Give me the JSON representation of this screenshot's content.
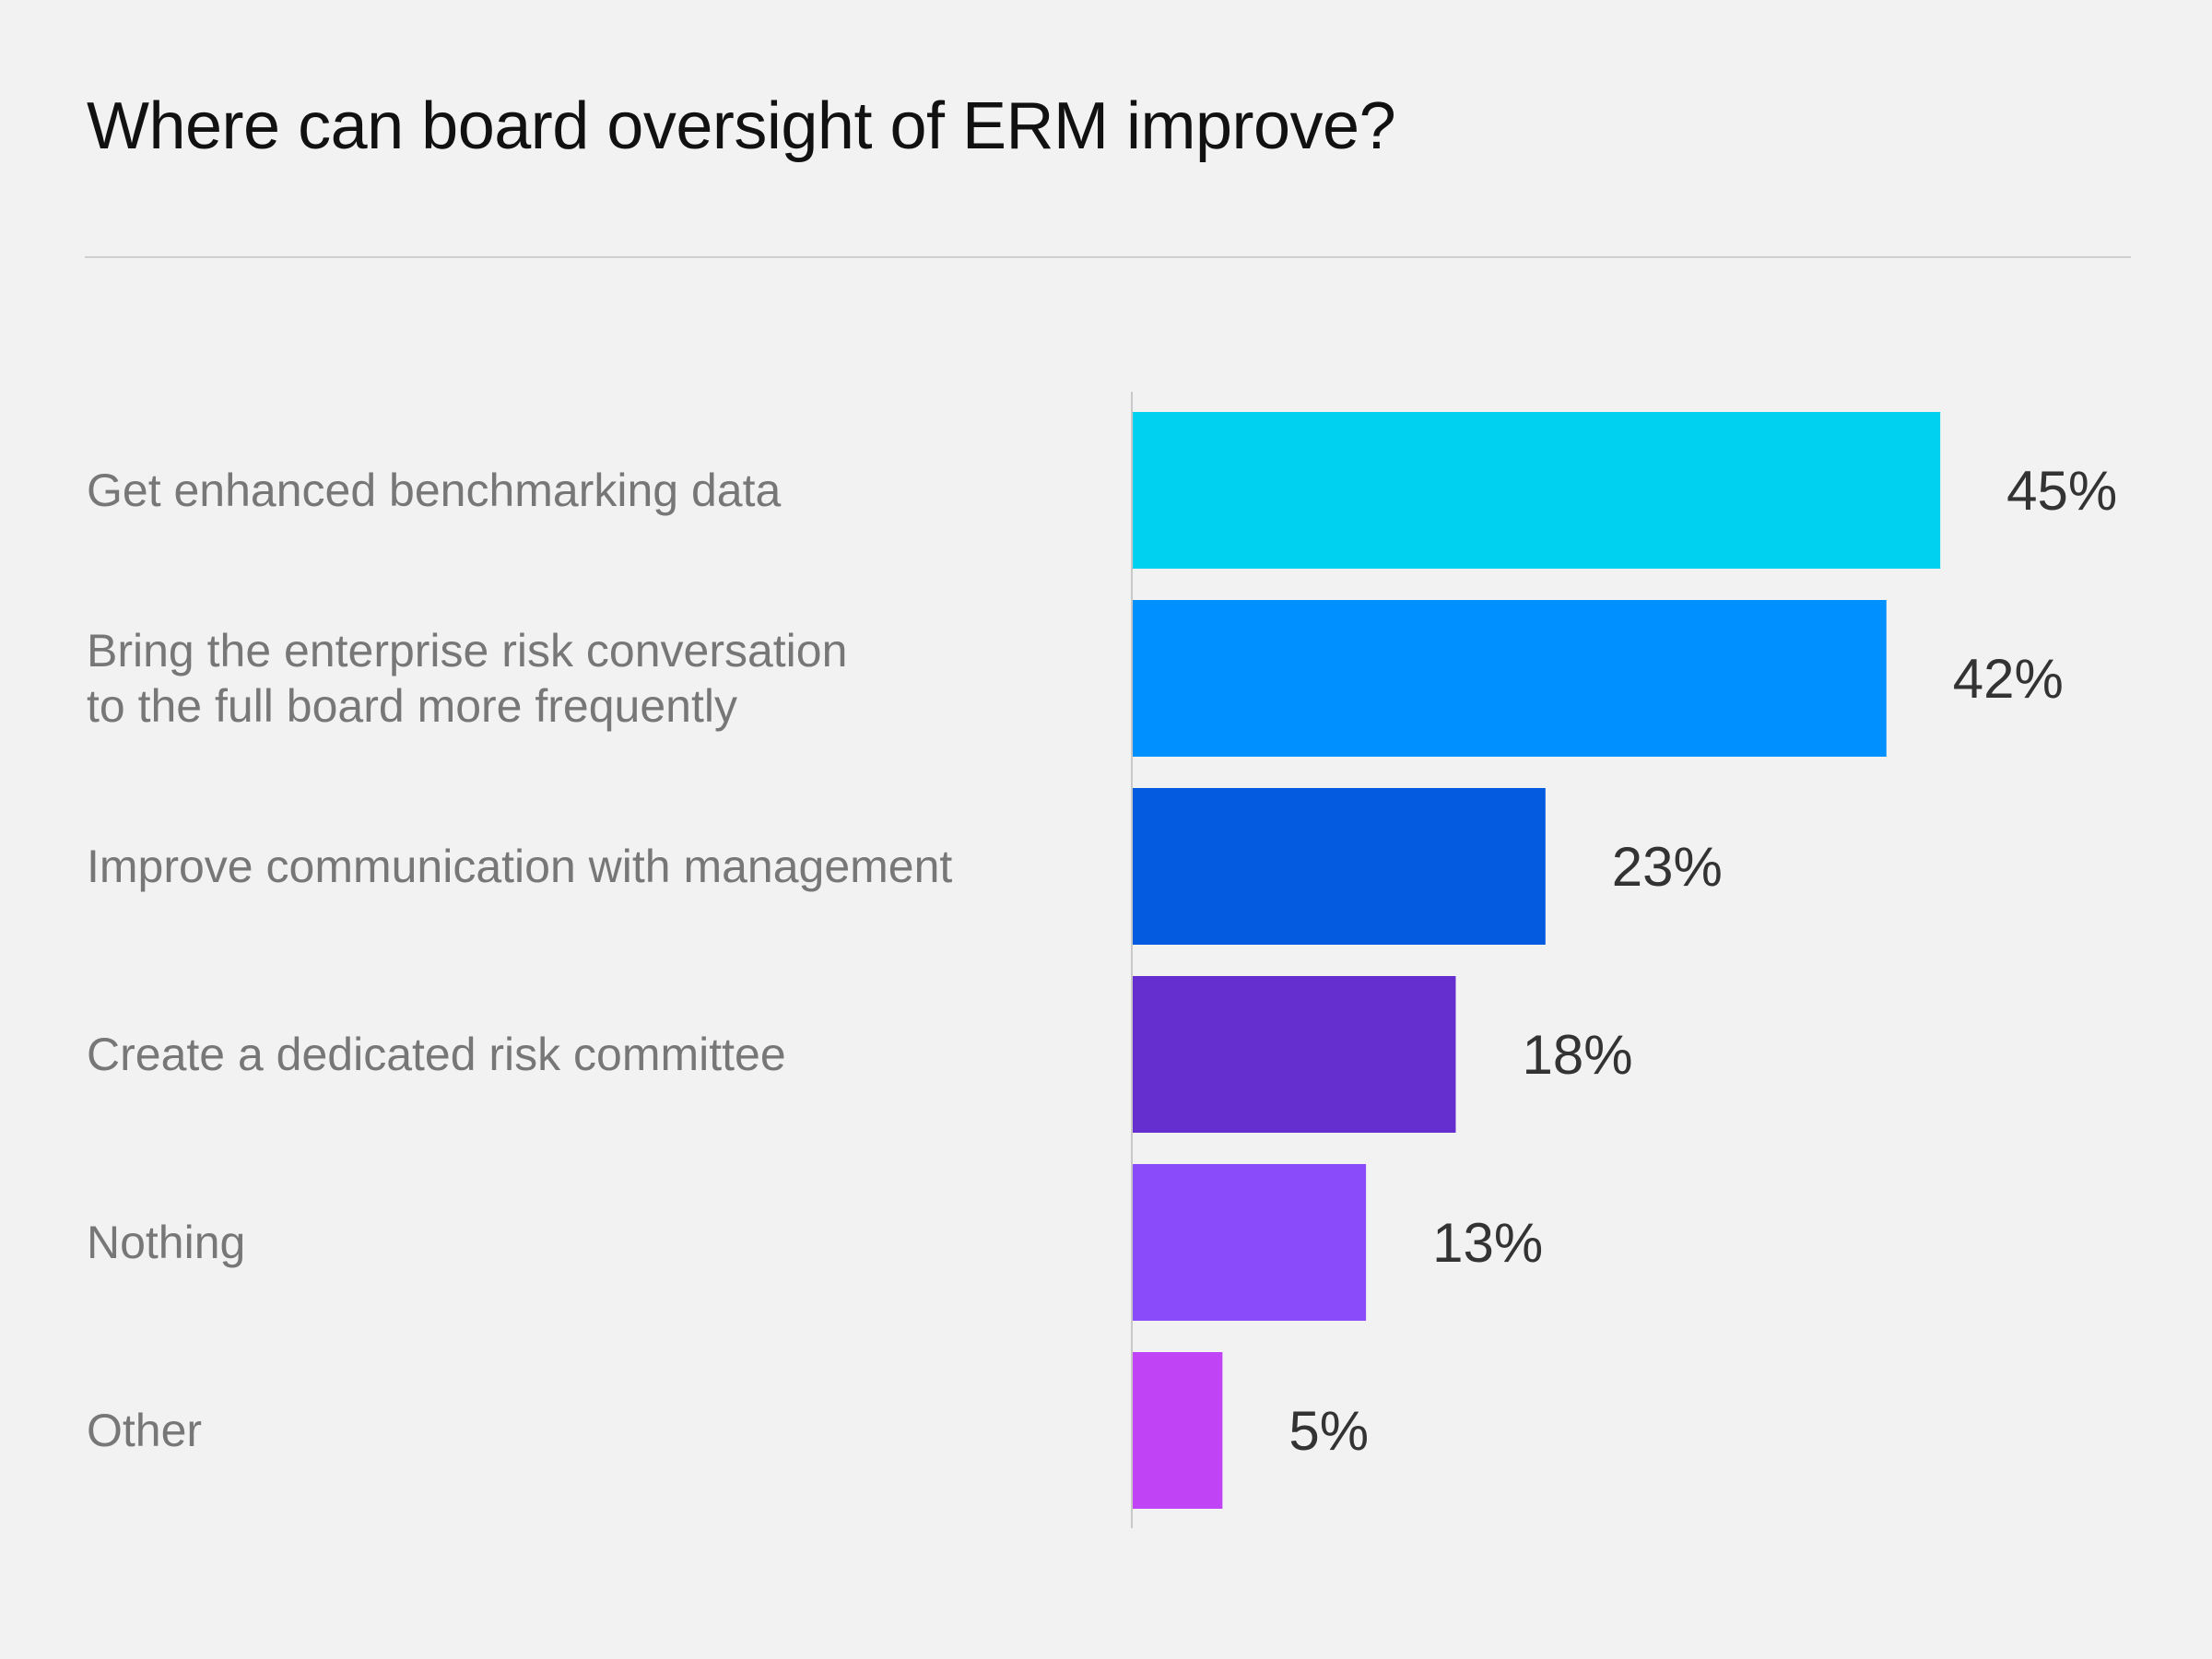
{
  "chart_data": {
    "type": "bar",
    "orientation": "horizontal",
    "title": "Where can board oversight of ERM improve?",
    "categories": [
      [
        "Get enhanced benchmarking data"
      ],
      [
        "Bring the enterprise risk conversation",
        "to the full board more frequently"
      ],
      [
        "Improve communication with management"
      ],
      [
        "Create a dedicated risk committee"
      ],
      [
        "Nothing"
      ],
      [
        "Other"
      ]
    ],
    "values": [
      45,
      42,
      23,
      18,
      13,
      5
    ],
    "value_labels": [
      "45%",
      "42%",
      "23%",
      "18%",
      "13%",
      "5%"
    ],
    "colors": [
      "#00d1f0",
      "#0090ff",
      "#055be0",
      "#652ecf",
      "#8a4bfa",
      "#c044f5"
    ],
    "xlim": [
      0,
      50
    ],
    "grid": false,
    "legend": "none"
  }
}
